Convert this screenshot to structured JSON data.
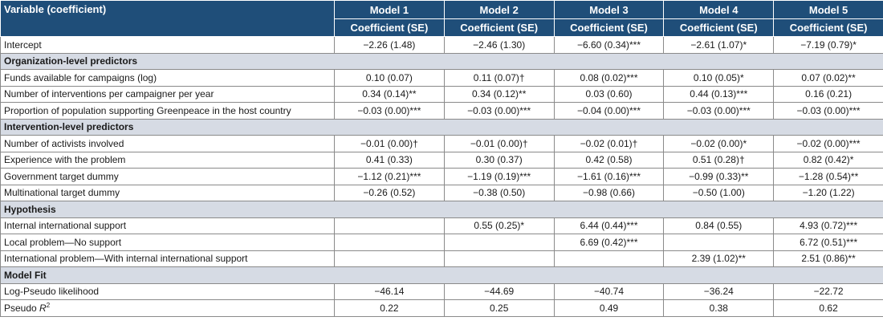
{
  "header": {
    "variable_label": "Variable (coefficient)",
    "models": [
      "Model 1",
      "Model 2",
      "Model 3",
      "Model 4",
      "Model 5"
    ],
    "subheader": [
      "Coefficient (SE)",
      "Coefficient (SE)",
      "Coefficient (SE)",
      "Coefficient (SE)",
      "Coefficient (SE)"
    ]
  },
  "rows": [
    {
      "type": "data",
      "label": "Intercept",
      "values": [
        "−2.26 (1.48)",
        "−2.46 (1.30)",
        "−6.60 (0.34)***",
        "−2.61 (1.07)*",
        "−7.19 (0.79)*"
      ]
    },
    {
      "type": "section",
      "label": "Organization-level predictors"
    },
    {
      "type": "data",
      "label": "Funds available for campaigns (log)",
      "values": [
        "0.10 (0.07)",
        "0.11 (0.07)†",
        "0.08 (0.02)***",
        "0.10 (0.05)*",
        "0.07 (0.02)**"
      ]
    },
    {
      "type": "data",
      "label": "Number of interventions per campaigner per year",
      "values": [
        "0.34 (0.14)**",
        "0.34 (0.12)**",
        "0.03 (0.60)",
        "0.44 (0.13)***",
        "0.16 (0.21)"
      ]
    },
    {
      "type": "data",
      "label": "Proportion of population supporting Greenpeace in the host country",
      "values": [
        "−0.03 (0.00)***",
        "−0.03 (0.00)***",
        "−0.04 (0.00)***",
        "−0.03 (0.00)***",
        "−0.03 (0.00)***"
      ]
    },
    {
      "type": "section",
      "label": "Intervention-level predictors"
    },
    {
      "type": "data",
      "label": "Number of activists involved",
      "values": [
        "−0.01 (0.00)†",
        "−0.01 (0.00)†",
        "−0.02 (0.01)†",
        "−0.02 (0.00)*",
        "−0.02 (0.00)***"
      ]
    },
    {
      "type": "data",
      "label": "Experience with the problem",
      "values": [
        "0.41 (0.33)",
        "0.30 (0.37)",
        "0.42 (0.58)",
        "0.51 (0.28)†",
        "0.82 (0.42)*"
      ]
    },
    {
      "type": "data",
      "label": "Government target dummy",
      "values": [
        "−1.12 (0.21)***",
        "−1.19 (0.19)***",
        "−1.61 (0.16)***",
        "−0.99 (0.33)**",
        "−1.28 (0.54)**"
      ]
    },
    {
      "type": "data",
      "label": "Multinational target dummy",
      "values": [
        "−0.26 (0.52)",
        "−0.38 (0.50)",
        "−0.98 (0.66)",
        "−0.50 (1.00)",
        "−1.20 (1.22)"
      ]
    },
    {
      "type": "section",
      "label": "Hypothesis"
    },
    {
      "type": "data",
      "label": "Internal international support",
      "values": [
        "",
        "0.55 (0.25)*",
        "6.44 (0.44)***",
        "0.84 (0.55)",
        "4.93 (0.72)***"
      ]
    },
    {
      "type": "data",
      "label": "Local problem—No support",
      "values": [
        "",
        "",
        "6.69 (0.42)***",
        "",
        "6.72 (0.51)***"
      ]
    },
    {
      "type": "data",
      "label": "International problem—With internal international support",
      "values": [
        "",
        "",
        "",
        "2.39 (1.02)**",
        "2.51 (0.86)**"
      ]
    },
    {
      "type": "section",
      "label": "Model Fit"
    },
    {
      "type": "data",
      "label": "Log-Pseudo likelihood",
      "values": [
        "−46.14",
        "−44.69",
        "−40.74",
        "−36.24",
        "−22.72"
      ]
    },
    {
      "type": "data",
      "label": "Pseudo",
      "label_italic": "R",
      "label_sup": "2",
      "values": [
        "0.22",
        "0.25",
        "0.49",
        "0.38",
        "0.62"
      ]
    }
  ]
}
